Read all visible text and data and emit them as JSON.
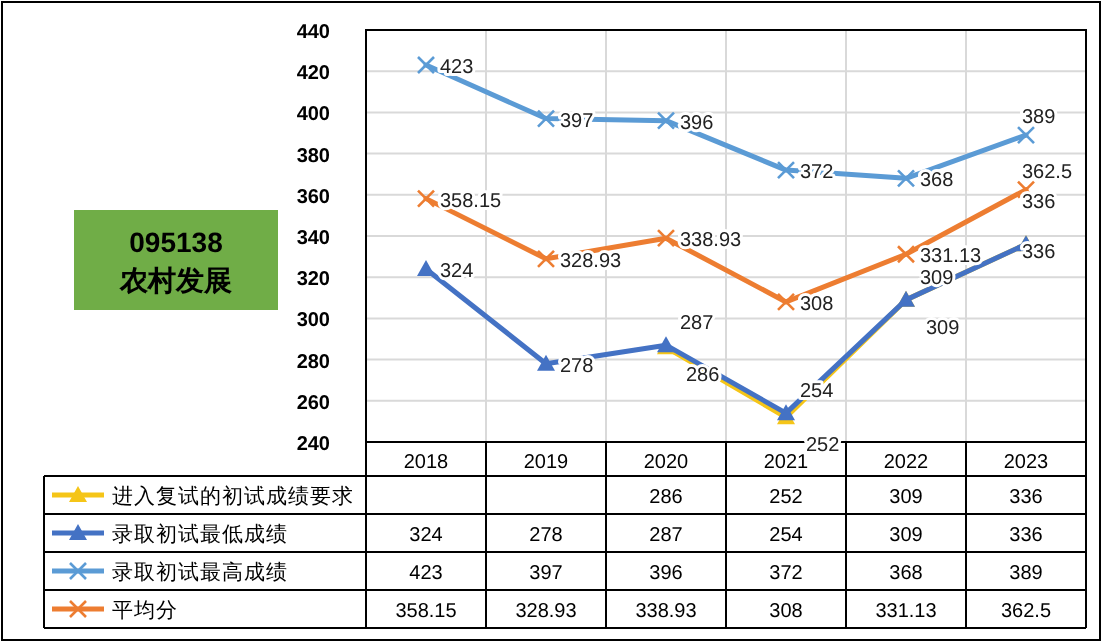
{
  "chart_data": {
    "type": "line",
    "title": "095138农村发展",
    "categories": [
      "2018",
      "2019",
      "2020",
      "2021",
      "2022",
      "2023"
    ],
    "series": [
      {
        "name": "进入复试的初试成绩要求",
        "color": "#f5c518",
        "marker": "triangle",
        "values": [
          null,
          null,
          286,
          252,
          309,
          336
        ],
        "value_labels": [
          null,
          null,
          "286",
          "252",
          "309",
          "336"
        ]
      },
      {
        "name": "录取初试最低成绩",
        "color": "#4472c4",
        "marker": "triangle",
        "values": [
          324,
          278,
          287,
          254,
          309,
          336
        ],
        "value_labels": [
          "324",
          "278",
          "287",
          "254",
          "309",
          "336"
        ]
      },
      {
        "name": "录取初试最高成绩",
        "color": "#5b9bd5",
        "marker": "cross",
        "values": [
          423,
          397,
          396,
          372,
          368,
          389
        ],
        "value_labels": [
          "423",
          "397",
          "396",
          "372",
          "368",
          "389"
        ]
      },
      {
        "name": "平均分",
        "color": "#ed7d31",
        "marker": "cross",
        "values": [
          358.15,
          328.93,
          338.93,
          308,
          331.13,
          362.5
        ],
        "value_labels": [
          "358.15",
          "328.93",
          "338.93",
          "308",
          "331.13",
          "362.5"
        ]
      }
    ],
    "ylim": [
      240,
      440
    ],
    "yticks": [
      240,
      260,
      280,
      300,
      320,
      340,
      360,
      380,
      400,
      420,
      440
    ],
    "grid": true,
    "data_labels": true,
    "legend": "bottom left"
  }
}
